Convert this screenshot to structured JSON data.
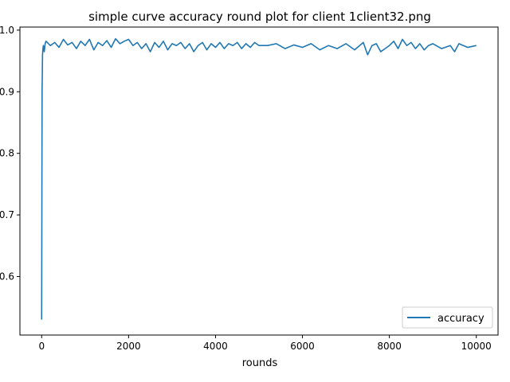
{
  "chart_data": {
    "type": "line",
    "title": "simple curve accuracy round plot for client 1client32.png",
    "xlabel": "rounds",
    "ylabel": "",
    "xlim": [
      -500,
      10500
    ],
    "ylim": [
      0.505,
      1.005
    ],
    "x_ticks": [
      0,
      2000,
      4000,
      6000,
      8000,
      10000
    ],
    "x_tick_labels": [
      "0",
      "2000",
      "4000",
      "6000",
      "8000",
      "10000"
    ],
    "y_ticks": [
      0.6,
      0.7,
      0.8,
      0.9,
      1.0
    ],
    "y_tick_labels": [
      "0.6",
      "0.7",
      "0.8",
      "0.9",
      "1.0"
    ],
    "grid": false,
    "legend_position": "lower right",
    "series": [
      {
        "name": "accuracy",
        "color": "#1f77b4",
        "x": [
          0,
          10,
          20,
          30,
          40,
          60,
          80,
          100,
          200,
          300,
          400,
          500,
          600,
          700,
          800,
          900,
          1000,
          1100,
          1200,
          1300,
          1400,
          1500,
          1600,
          1700,
          1800,
          1900,
          2000,
          2100,
          2200,
          2300,
          2400,
          2500,
          2600,
          2700,
          2800,
          2900,
          3000,
          3100,
          3200,
          3300,
          3400,
          3500,
          3600,
          3700,
          3800,
          3900,
          4000,
          4100,
          4200,
          4300,
          4400,
          4500,
          4600,
          4700,
          4800,
          4900,
          5000,
          5200,
          5400,
          5600,
          5800,
          6000,
          6200,
          6400,
          6600,
          6800,
          7000,
          7200,
          7400,
          7500,
          7600,
          7700,
          7800,
          7900,
          8000,
          8100,
          8200,
          8300,
          8400,
          8500,
          8600,
          8700,
          8800,
          8900,
          9000,
          9200,
          9400,
          9500,
          9600,
          9800,
          10000
        ],
        "y": [
          0.53,
          0.9,
          0.96,
          0.97,
          0.975,
          0.965,
          0.978,
          0.982,
          0.975,
          0.98,
          0.972,
          0.985,
          0.976,
          0.98,
          0.97,
          0.982,
          0.975,
          0.985,
          0.968,
          0.98,
          0.975,
          0.983,
          0.972,
          0.986,
          0.978,
          0.982,
          0.985,
          0.975,
          0.98,
          0.97,
          0.978,
          0.965,
          0.98,
          0.972,
          0.982,
          0.968,
          0.978,
          0.975,
          0.98,
          0.97,
          0.978,
          0.965,
          0.975,
          0.98,
          0.968,
          0.978,
          0.972,
          0.98,
          0.97,
          0.978,
          0.975,
          0.98,
          0.97,
          0.978,
          0.972,
          0.98,
          0.975,
          0.975,
          0.978,
          0.97,
          0.976,
          0.972,
          0.978,
          0.968,
          0.975,
          0.97,
          0.978,
          0.968,
          0.98,
          0.96,
          0.975,
          0.978,
          0.965,
          0.97,
          0.975,
          0.982,
          0.97,
          0.985,
          0.975,
          0.98,
          0.97,
          0.978,
          0.968,
          0.975,
          0.978,
          0.97,
          0.975,
          0.965,
          0.978,
          0.972,
          0.975
        ]
      }
    ]
  }
}
